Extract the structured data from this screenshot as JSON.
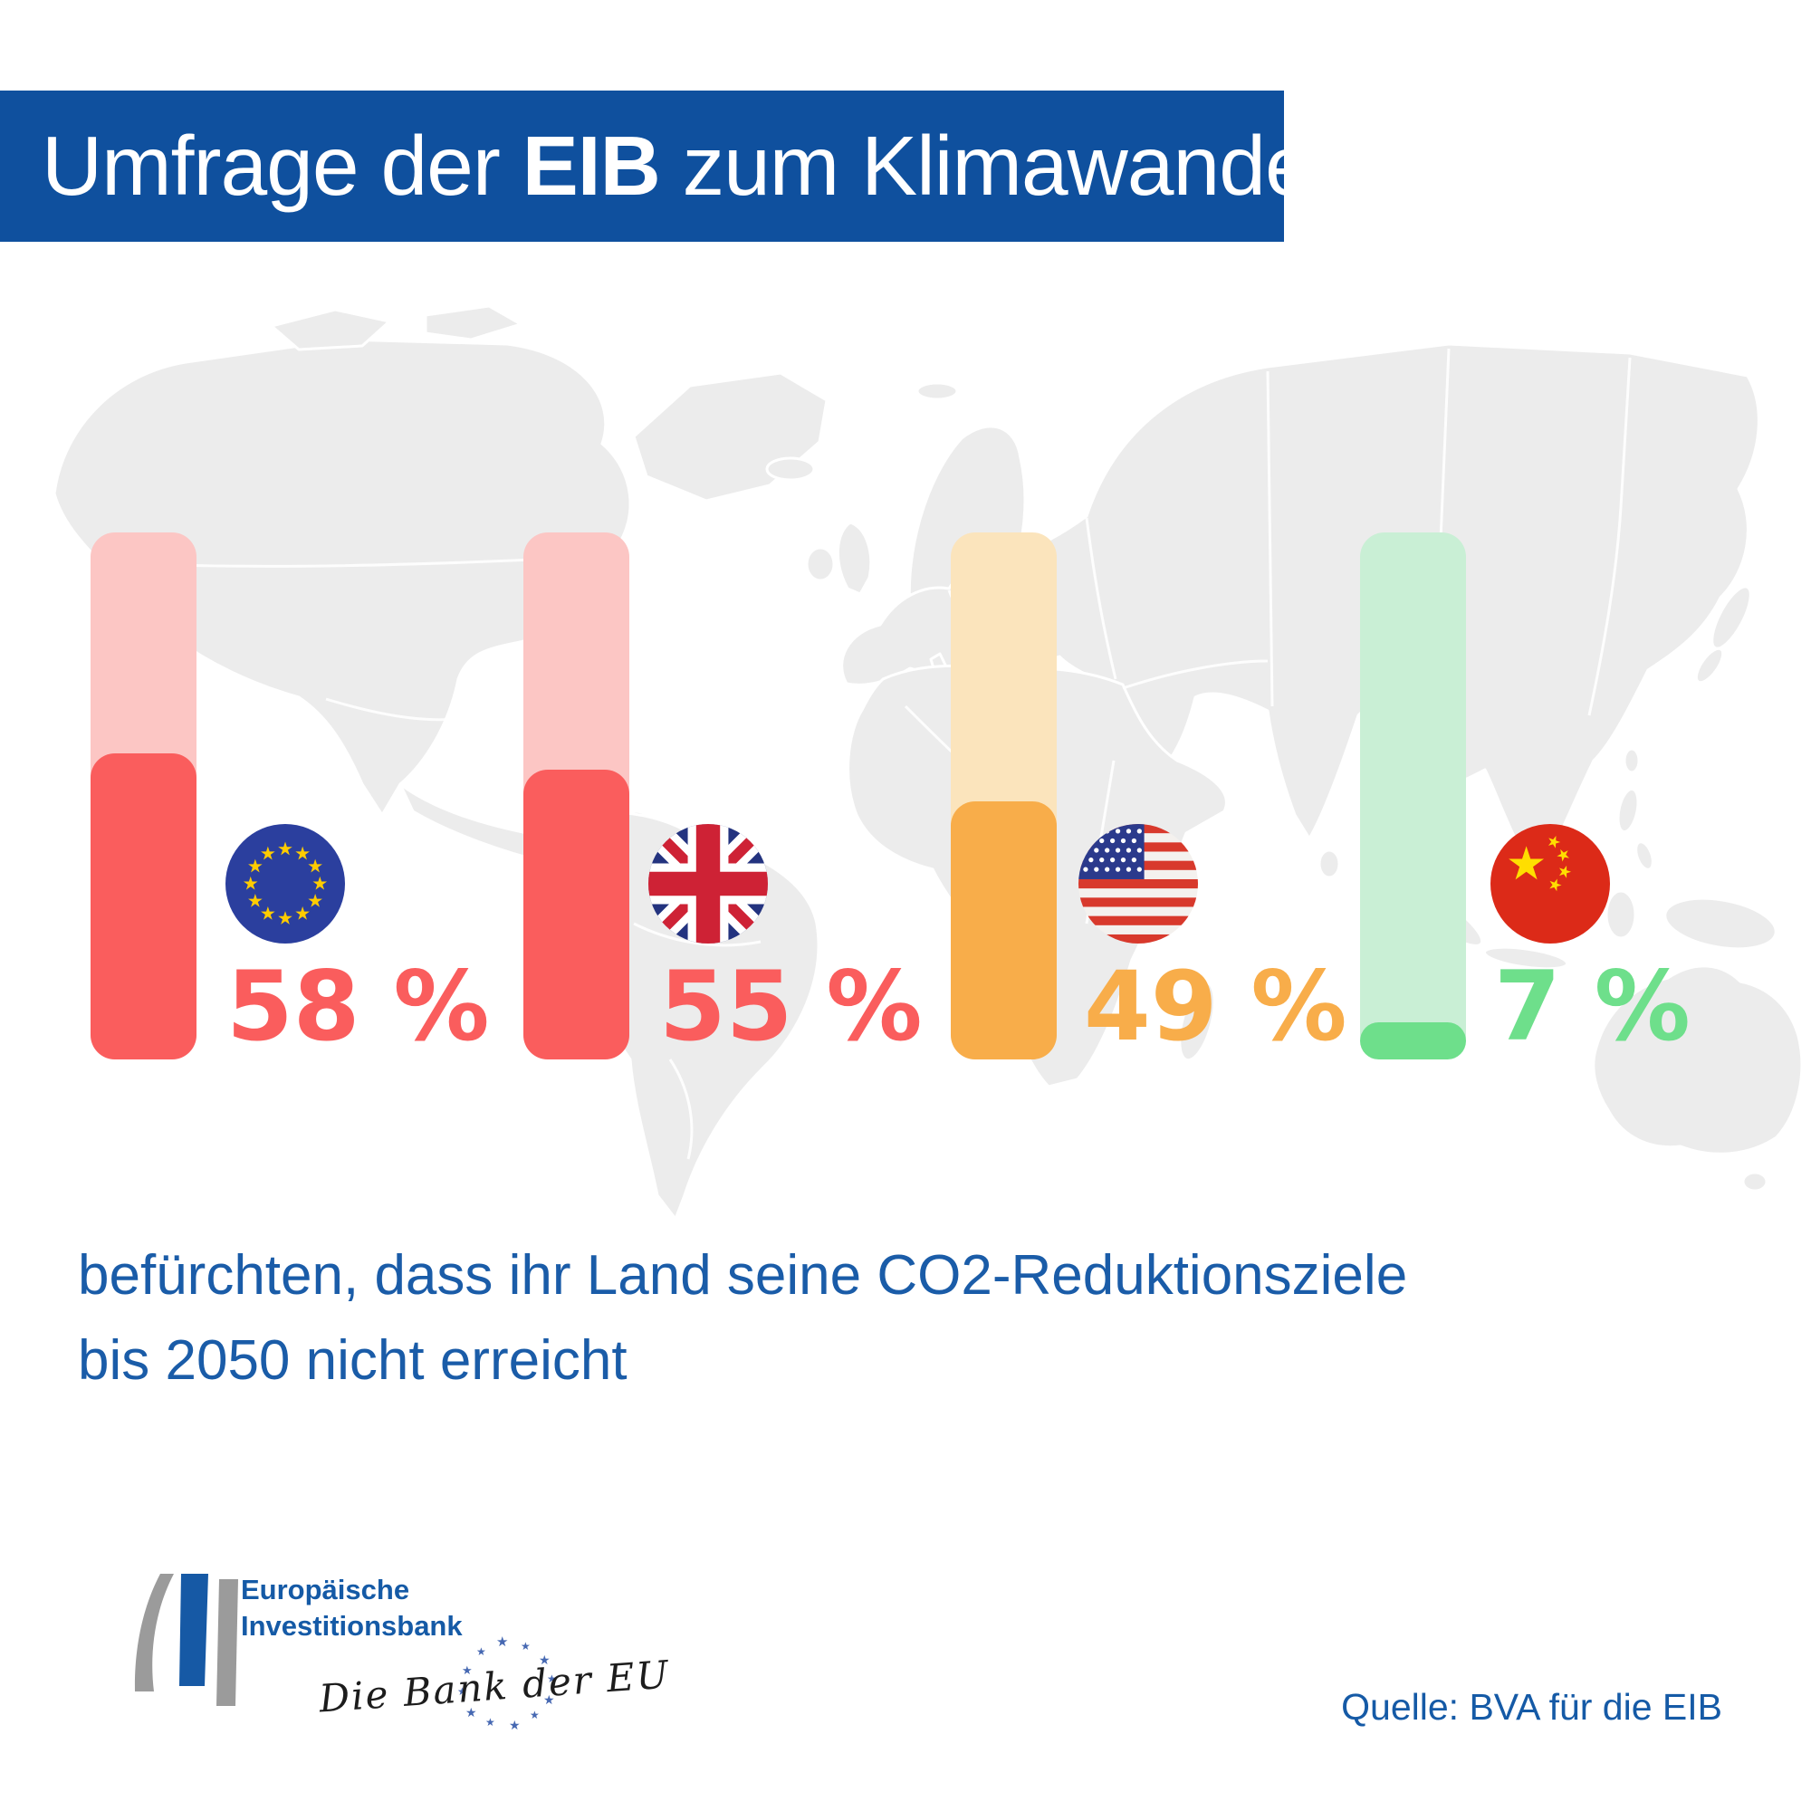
{
  "header": {
    "title_prefix": "Umfrage der ",
    "title_bold": "EIB",
    "title_suffix": " zum Klimawandel",
    "bg_color": "#0F509E"
  },
  "chart_data": {
    "type": "bar",
    "title": "Umfrage der EIB zum Klimawandel",
    "categories": [
      "Europäische Union",
      "Vereinigtes Königreich",
      "USA",
      "China"
    ],
    "values": [
      58,
      55,
      49,
      7
    ],
    "value_labels": [
      "58 %",
      "55 %",
      "49 %",
      "7 %"
    ],
    "unit": "%",
    "ylim": [
      0,
      100
    ],
    "bar_colors": [
      {
        "fill": "#FA5D5D",
        "track": "#FCC6C4"
      },
      {
        "fill": "#FA5D5D",
        "track": "#FCC6C4"
      },
      {
        "fill": "#F8AD4A",
        "track": "#FBE4BC"
      },
      {
        "fill": "#6EDF8B",
        "track": "#C9EFD5"
      }
    ],
    "flag_icons": [
      "eu-flag-icon",
      "uk-flag-icon",
      "us-flag-icon",
      "china-flag-icon"
    ],
    "legend_position": "none",
    "grid": false
  },
  "caption": {
    "line1": "befürchten, dass ihr Land seine CO2-Reduktionsziele",
    "line2": "bis 2050 nicht erreicht",
    "color": "#1A5CA8"
  },
  "logo": {
    "name_line1": "Europäische",
    "name_line2": "Investitionsbank",
    "tagline": "Die Bank der EU"
  },
  "source": {
    "text": "Quelle: BVA für die EIB"
  },
  "colors": {
    "banner_blue": "#0F509E",
    "text_blue": "#1A5CA8",
    "map_gray": "#ECECEC"
  }
}
